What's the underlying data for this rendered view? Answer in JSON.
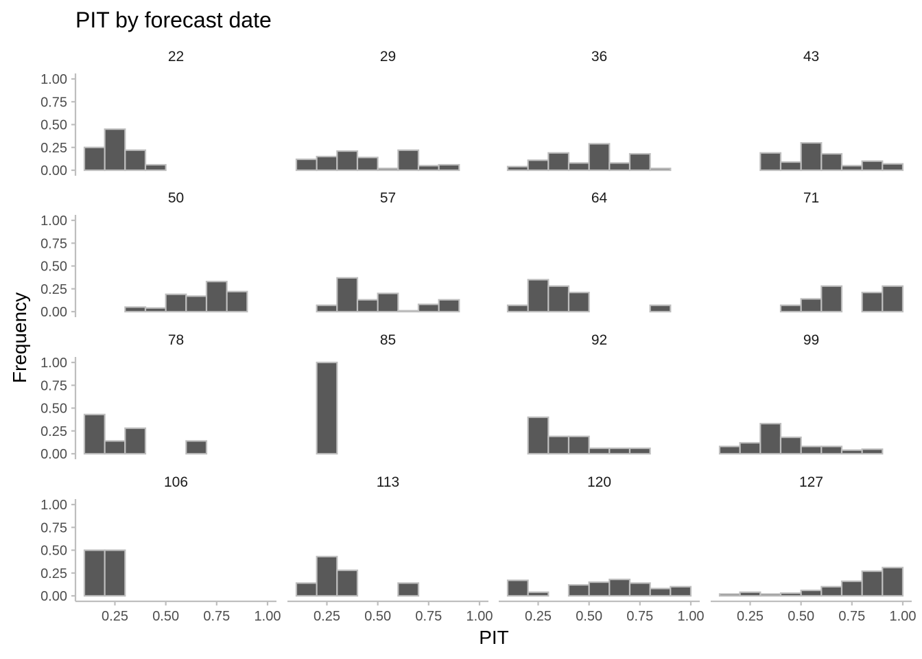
{
  "chart_data": {
    "type": "bar",
    "title": "PIT by forecast date",
    "xlabel": "PIT",
    "ylabel": "Frequency",
    "xlim": [
      0.1,
      1.0
    ],
    "ylim": [
      0,
      1.0
    ],
    "x_ticks": [
      "0.25",
      "0.50",
      "0.75",
      "1.00"
    ],
    "y_ticks": [
      "0.00",
      "0.25",
      "0.50",
      "0.75",
      "1.00"
    ],
    "bin_edges": [
      0.1,
      0.2,
      0.3,
      0.4,
      0.5,
      0.6,
      0.7,
      0.8,
      0.9,
      1.0
    ],
    "grid": false,
    "panels": [
      {
        "label": "22",
        "values": [
          0.25,
          0.45,
          0.22,
          0.06,
          0,
          0,
          0,
          0,
          0
        ]
      },
      {
        "label": "29",
        "values": [
          0.12,
          0.15,
          0.21,
          0.14,
          0.02,
          0.22,
          0.05,
          0.06,
          0
        ]
      },
      {
        "label": "36",
        "values": [
          0.04,
          0.11,
          0.19,
          0.08,
          0.29,
          0.08,
          0.18,
          0.02,
          0
        ]
      },
      {
        "label": "43",
        "values": [
          0,
          0,
          0.19,
          0.09,
          0.3,
          0.18,
          0.05,
          0.1,
          0.07
        ]
      },
      {
        "label": "50",
        "values": [
          0,
          0,
          0.05,
          0.04,
          0.19,
          0.17,
          0.33,
          0.22,
          0
        ]
      },
      {
        "label": "57",
        "values": [
          0,
          0.07,
          0.37,
          0.13,
          0.2,
          0.01,
          0.08,
          0.13,
          0
        ]
      },
      {
        "label": "64",
        "values": [
          0.07,
          0.35,
          0.28,
          0.21,
          0,
          0,
          0,
          0.07,
          0
        ]
      },
      {
        "label": "71",
        "values": [
          0,
          0,
          0,
          0.07,
          0.14,
          0.28,
          0,
          0.21,
          0.28
        ]
      },
      {
        "label": "78",
        "values": [
          0.43,
          0.14,
          0.28,
          0,
          0,
          0.14,
          0,
          0,
          0
        ]
      },
      {
        "label": "85",
        "values": [
          0,
          1.0,
          0,
          0,
          0,
          0,
          0,
          0,
          0
        ]
      },
      {
        "label": "92",
        "values": [
          0,
          0.4,
          0.19,
          0.19,
          0.06,
          0.06,
          0.06,
          0,
          0
        ]
      },
      {
        "label": "99",
        "values": [
          0.08,
          0.12,
          0.33,
          0.18,
          0.08,
          0.08,
          0.04,
          0.05,
          0
        ]
      },
      {
        "label": "106",
        "values": [
          0.5,
          0.5,
          0,
          0,
          0,
          0,
          0,
          0,
          0
        ]
      },
      {
        "label": "113",
        "values": [
          0.14,
          0.43,
          0.28,
          0,
          0,
          0.14,
          0,
          0,
          0
        ]
      },
      {
        "label": "120",
        "values": [
          0.17,
          0.04,
          0,
          0.12,
          0.15,
          0.18,
          0.14,
          0.08,
          0.1
        ]
      },
      {
        "label": "127",
        "values": [
          0.02,
          0.04,
          0.02,
          0.03,
          0.06,
          0.1,
          0.16,
          0.27,
          0.31
        ]
      }
    ]
  }
}
